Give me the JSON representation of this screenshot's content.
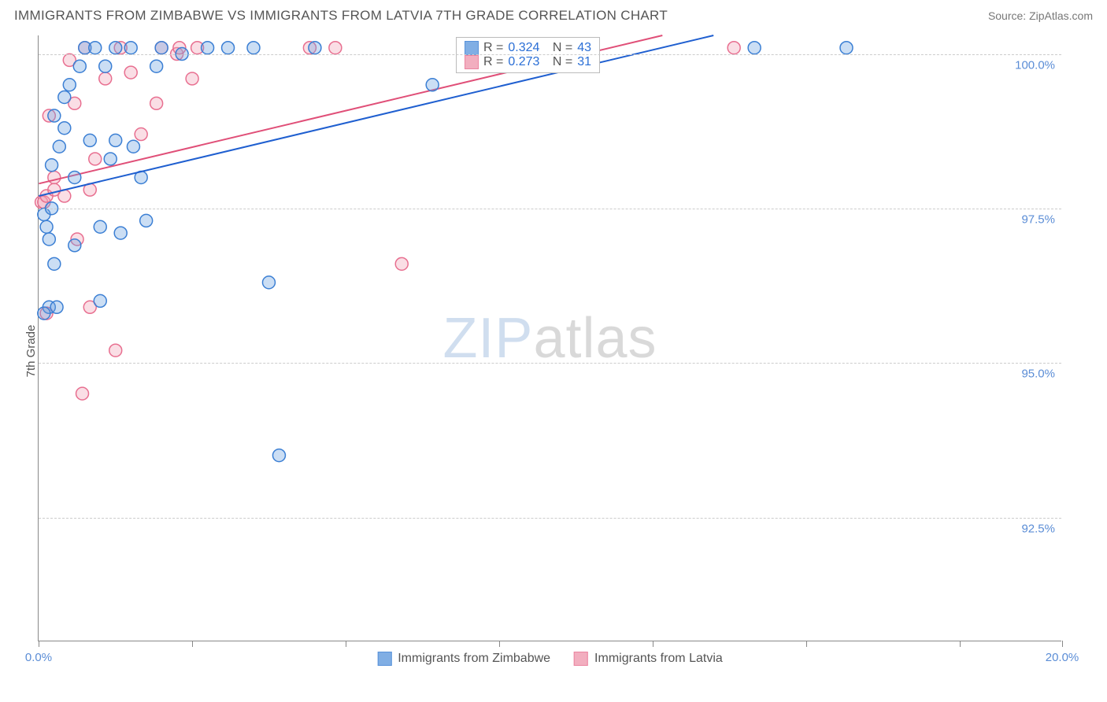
{
  "header": {
    "title": "IMMIGRANTS FROM ZIMBABWE VS IMMIGRANTS FROM LATVIA 7TH GRADE CORRELATION CHART",
    "source": "Source: ZipAtlas.com"
  },
  "chart": {
    "type": "scatter",
    "ylabel": "7th Grade",
    "background_color": "#ffffff",
    "grid_color": "#cccccc",
    "axis_color": "#888888",
    "label_color": "#5b8dd6",
    "xlim": [
      0.0,
      20.0
    ],
    "ylim": [
      90.5,
      100.3
    ],
    "ytick_step": 2.5,
    "yticks": [
      92.5,
      95.0,
      97.5,
      100.0
    ],
    "ytick_labels": [
      "92.5%",
      "95.0%",
      "97.5%",
      "100.0%"
    ],
    "xticks": [
      0.0,
      3.0,
      6.0,
      9.0,
      12.0,
      15.0,
      18.0,
      20.0
    ],
    "xtick_labels_visible": {
      "0.0": "0.0%",
      "20.0": "20.0%"
    },
    "marker_radius": 8,
    "marker_fill_opacity": 0.35,
    "line_width": 2,
    "series": {
      "zimbabwe": {
        "label": "Immigrants from Zimbabwe",
        "color": "#6aa0e0",
        "stroke": "#3b7fd4",
        "line_color": "#1f5fd0",
        "R": "0.324",
        "N": "43",
        "trend": {
          "x1": 0.0,
          "y1": 97.7,
          "x2": 13.2,
          "y2": 100.3
        },
        "points": [
          [
            0.1,
            97.4
          ],
          [
            0.15,
            97.2
          ],
          [
            0.2,
            97.0
          ],
          [
            0.25,
            98.2
          ],
          [
            0.25,
            97.5
          ],
          [
            0.3,
            99.0
          ],
          [
            0.3,
            96.6
          ],
          [
            0.4,
            98.5
          ],
          [
            0.5,
            98.8
          ],
          [
            0.5,
            99.3
          ],
          [
            0.6,
            99.5
          ],
          [
            0.7,
            98.0
          ],
          [
            0.7,
            96.9
          ],
          [
            0.8,
            99.8
          ],
          [
            0.9,
            100.1
          ],
          [
            1.0,
            98.6
          ],
          [
            1.1,
            100.1
          ],
          [
            1.2,
            97.2
          ],
          [
            1.2,
            96.0
          ],
          [
            1.3,
            99.8
          ],
          [
            1.4,
            98.3
          ],
          [
            1.5,
            100.1
          ],
          [
            1.5,
            98.6
          ],
          [
            1.6,
            97.1
          ],
          [
            1.8,
            100.1
          ],
          [
            1.85,
            98.5
          ],
          [
            2.0,
            98.0
          ],
          [
            2.1,
            97.3
          ],
          [
            2.3,
            99.8
          ],
          [
            2.4,
            100.1
          ],
          [
            2.8,
            100.0
          ],
          [
            3.3,
            100.1
          ],
          [
            3.7,
            100.1
          ],
          [
            4.2,
            100.1
          ],
          [
            4.5,
            96.3
          ],
          [
            4.7,
            93.5
          ],
          [
            5.4,
            100.1
          ],
          [
            7.7,
            99.5
          ],
          [
            0.2,
            95.9
          ],
          [
            0.35,
            95.9
          ],
          [
            0.1,
            95.8
          ],
          [
            14.0,
            100.1
          ],
          [
            15.8,
            100.1
          ]
        ]
      },
      "latvia": {
        "label": "Immigrants from Latvia",
        "color": "#f0a0b5",
        "stroke": "#e86f90",
        "line_color": "#e04f78",
        "R": "0.273",
        "N": "31",
        "trend": {
          "x1": 0.0,
          "y1": 97.9,
          "x2": 12.2,
          "y2": 100.3
        },
        "points": [
          [
            0.05,
            97.6
          ],
          [
            0.1,
            97.6
          ],
          [
            0.15,
            97.7
          ],
          [
            0.2,
            99.0
          ],
          [
            0.3,
            98.0
          ],
          [
            0.3,
            97.8
          ],
          [
            0.5,
            97.7
          ],
          [
            0.6,
            99.9
          ],
          [
            0.7,
            99.2
          ],
          [
            0.75,
            97.0
          ],
          [
            0.85,
            94.5
          ],
          [
            0.9,
            100.1
          ],
          [
            1.0,
            97.8
          ],
          [
            1.0,
            95.9
          ],
          [
            1.1,
            98.3
          ],
          [
            1.3,
            99.6
          ],
          [
            1.5,
            95.2
          ],
          [
            1.6,
            100.1
          ],
          [
            1.8,
            99.7
          ],
          [
            2.0,
            98.7
          ],
          [
            2.3,
            99.2
          ],
          [
            2.4,
            100.1
          ],
          [
            2.7,
            100.0
          ],
          [
            2.75,
            100.1
          ],
          [
            3.0,
            99.6
          ],
          [
            3.1,
            100.1
          ],
          [
            5.3,
            100.1
          ],
          [
            5.8,
            100.1
          ],
          [
            7.1,
            96.6
          ],
          [
            13.6,
            100.1
          ],
          [
            0.15,
            95.8
          ]
        ]
      }
    },
    "legend_box": {
      "rows": [
        {
          "swatch": "zimbabwe",
          "r_label": "R =",
          "n_label": "N ="
        },
        {
          "swatch": "latvia",
          "r_label": "R =",
          "n_label": "N ="
        }
      ]
    },
    "watermark": {
      "a": "ZIP",
      "b": "atlas"
    }
  }
}
